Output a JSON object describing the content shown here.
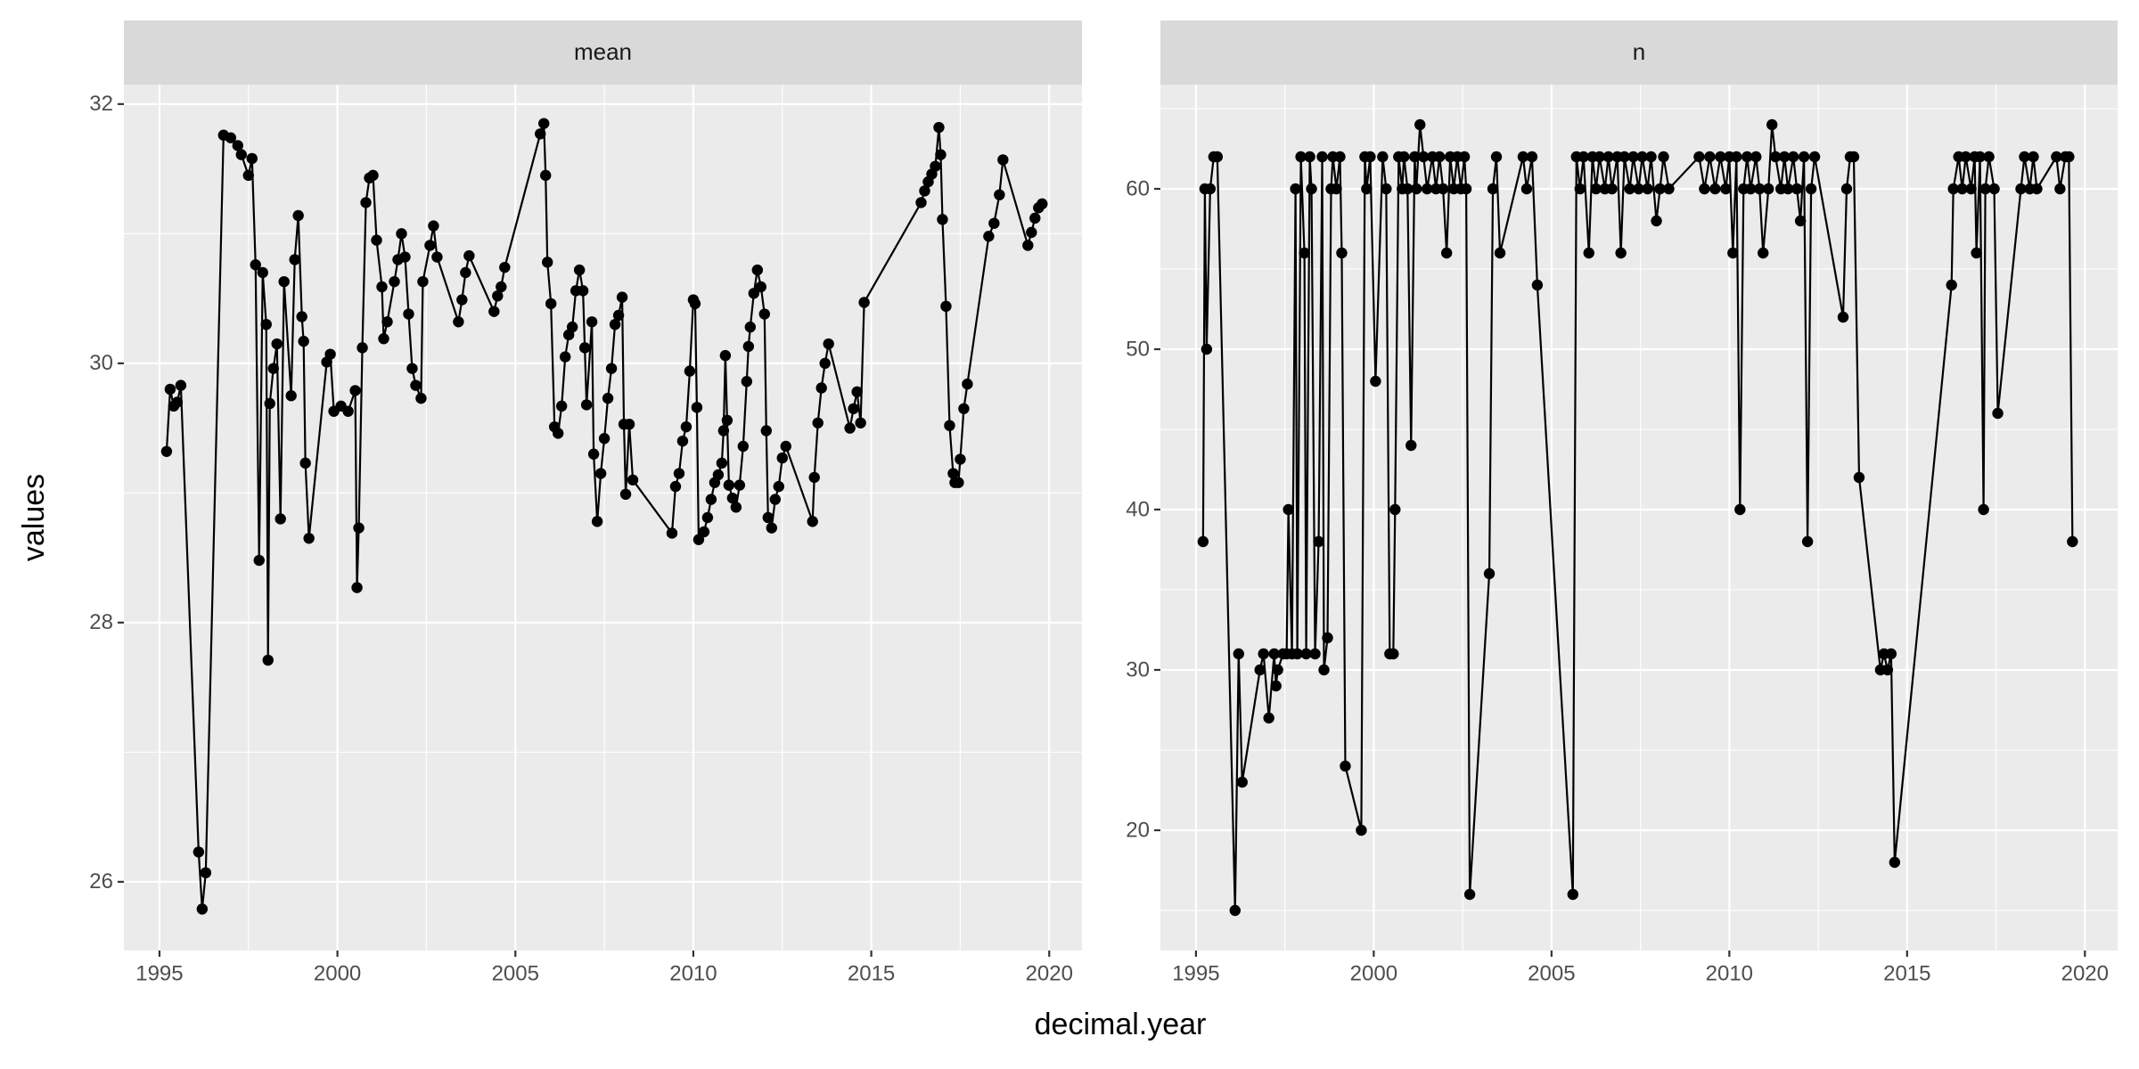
{
  "chart_data": [
    {
      "type": "line",
      "title": "mean",
      "color": "#000000",
      "grid": true,
      "xlim": [
        1994.0,
        2020.92
      ],
      "ylim": [
        25.47,
        32.15
      ],
      "xticks": [
        1995,
        2000,
        2005,
        2010,
        2015,
        2020
      ],
      "yticks": [
        26,
        28,
        30,
        32
      ],
      "x": [
        1995.2,
        1995.3,
        1995.4,
        1995.5,
        1995.6,
        1996.1,
        1996.2,
        1996.3,
        1996.8,
        1997.0,
        1997.2,
        1997.3,
        1997.5,
        1997.6,
        1997.7,
        1997.8,
        1997.9,
        1998.0,
        1998.05,
        1998.1,
        1998.2,
        1998.3,
        1998.4,
        1998.5,
        1998.7,
        1998.8,
        1998.9,
        1999.0,
        1999.05,
        1999.1,
        1999.2,
        1999.7,
        1999.8,
        1999.9,
        2000.1,
        2000.3,
        2000.5,
        2000.55,
        2000.6,
        2000.7,
        2000.8,
        2000.9,
        2001.0,
        2001.1,
        2001.25,
        2001.3,
        2001.4,
        2001.6,
        2001.7,
        2001.8,
        2001.9,
        2002.0,
        2002.1,
        2002.2,
        2002.35,
        2002.4,
        2002.6,
        2002.7,
        2002.8,
        2003.4,
        2003.5,
        2003.6,
        2003.7,
        2004.4,
        2004.5,
        2004.6,
        2004.7,
        2005.7,
        2005.8,
        2005.85,
        2005.9,
        2006.0,
        2006.1,
        2006.2,
        2006.3,
        2006.4,
        2006.5,
        2006.6,
        2006.7,
        2006.8,
        2006.9,
        2006.95,
        2007.0,
        2007.15,
        2007.2,
        2007.3,
        2007.4,
        2007.5,
        2007.6,
        2007.7,
        2007.8,
        2007.9,
        2008.0,
        2008.05,
        2008.1,
        2008.2,
        2008.3,
        2009.4,
        2009.5,
        2009.6,
        2009.7,
        2009.8,
        2009.9,
        2010.0,
        2010.05,
        2010.1,
        2010.15,
        2010.3,
        2010.4,
        2010.5,
        2010.6,
        2010.7,
        2010.8,
        2010.85,
        2010.9,
        2010.95,
        2011.0,
        2011.1,
        2011.2,
        2011.3,
        2011.4,
        2011.5,
        2011.55,
        2011.6,
        2011.7,
        2011.8,
        2011.9,
        2012.0,
        2012.05,
        2012.1,
        2012.2,
        2012.3,
        2012.4,
        2012.5,
        2012.6,
        2013.35,
        2013.4,
        2013.5,
        2013.6,
        2013.7,
        2013.8,
        2014.4,
        2014.5,
        2014.6,
        2014.7,
        2014.8,
        2016.4,
        2016.5,
        2016.6,
        2016.7,
        2016.8,
        2016.9,
        2016.95,
        2017.0,
        2017.1,
        2017.2,
        2017.3,
        2017.35,
        2017.45,
        2017.5,
        2017.6,
        2017.7,
        2018.3,
        2018.45,
        2018.6,
        2018.7,
        2019.4,
        2019.5,
        2019.6,
        2019.7,
        2019.8
      ],
      "values": [
        29.32,
        29.8,
        29.67,
        29.7,
        29.83,
        26.23,
        25.79,
        26.07,
        31.76,
        31.74,
        31.68,
        31.61,
        31.45,
        31.58,
        30.76,
        28.48,
        30.7,
        30.3,
        27.71,
        29.69,
        29.96,
        30.15,
        28.8,
        30.63,
        29.75,
        30.8,
        31.14,
        30.36,
        30.17,
        29.23,
        28.65,
        30.01,
        30.07,
        29.63,
        29.67,
        29.63,
        29.79,
        28.27,
        28.73,
        30.12,
        31.24,
        31.43,
        31.45,
        30.95,
        30.59,
        30.19,
        30.32,
        30.63,
        30.8,
        31.0,
        30.82,
        30.38,
        29.96,
        29.83,
        29.73,
        30.63,
        30.91,
        31.06,
        30.82,
        30.32,
        30.49,
        30.7,
        30.83,
        30.4,
        30.52,
        30.59,
        30.74,
        31.77,
        31.85,
        31.45,
        30.78,
        30.46,
        29.51,
        29.46,
        29.67,
        30.05,
        30.22,
        30.28,
        30.56,
        30.72,
        30.56,
        30.12,
        29.68,
        30.32,
        29.3,
        28.78,
        29.15,
        29.42,
        29.73,
        29.96,
        30.3,
        30.37,
        30.51,
        29.53,
        28.99,
        29.53,
        29.1,
        28.69,
        29.05,
        29.15,
        29.4,
        29.51,
        29.94,
        30.49,
        30.46,
        29.66,
        28.64,
        28.7,
        28.81,
        28.95,
        29.08,
        29.14,
        29.23,
        29.48,
        30.06,
        29.56,
        29.06,
        28.96,
        28.89,
        29.06,
        29.36,
        29.86,
        30.13,
        30.28,
        30.54,
        30.72,
        30.59,
        30.38,
        29.48,
        28.81,
        28.73,
        28.95,
        29.05,
        29.27,
        29.36,
        28.78,
        29.12,
        29.54,
        29.81,
        30.0,
        30.15,
        29.5,
        29.65,
        29.78,
        29.54,
        30.47,
        31.24,
        31.33,
        31.4,
        31.46,
        31.52,
        31.82,
        31.61,
        31.11,
        30.44,
        29.52,
        29.15,
        29.08,
        29.08,
        29.26,
        29.65,
        29.84,
        30.98,
        31.08,
        31.3,
        31.57,
        30.91,
        31.01,
        31.12,
        31.2,
        31.23
      ]
    },
    {
      "type": "line",
      "title": "n",
      "color": "#000000",
      "grid": true,
      "xlim": [
        1994.0,
        2020.92
      ],
      "ylim": [
        12.5,
        66.5
      ],
      "xticks": [
        1995,
        2000,
        2005,
        2010,
        2015,
        2020
      ],
      "yticks": [
        20,
        30,
        40,
        50,
        60
      ],
      "x": [
        1995.2,
        1995.25,
        1995.3,
        1995.4,
        1995.5,
        1995.6,
        1996.1,
        1996.2,
        1996.3,
        1996.8,
        1996.9,
        1997.05,
        1997.2,
        1997.25,
        1997.3,
        1997.45,
        1997.55,
        1997.6,
        1997.7,
        1997.8,
        1997.85,
        1997.95,
        1998.05,
        1998.1,
        1998.2,
        1998.25,
        1998.35,
        1998.45,
        1998.55,
        1998.6,
        1998.7,
        1998.8,
        1998.85,
        1998.95,
        1999.05,
        1999.1,
        1999.2,
        1999.65,
        1999.75,
        1999.8,
        1999.9,
        2000.05,
        2000.25,
        2000.35,
        2000.45,
        2000.55,
        2000.6,
        2000.7,
        2000.8,
        2000.85,
        2000.95,
        2001.05,
        2001.15,
        2001.2,
        2001.3,
        2001.4,
        2001.5,
        2001.65,
        2001.75,
        2001.85,
        2001.95,
        2002.05,
        2002.15,
        2002.25,
        2002.35,
        2002.45,
        2002.55,
        2002.6,
        2002.7,
        2003.25,
        2003.35,
        2003.45,
        2003.55,
        2004.2,
        2004.3,
        2004.45,
        2004.6,
        2005.6,
        2005.7,
        2005.8,
        2005.9,
        2006.05,
        2006.15,
        2006.25,
        2006.35,
        2006.5,
        2006.6,
        2006.7,
        2006.85,
        2006.95,
        2007.05,
        2007.2,
        2007.3,
        2007.45,
        2007.55,
        2007.7,
        2007.8,
        2007.95,
        2008.05,
        2008.15,
        2008.3,
        2009.15,
        2009.3,
        2009.45,
        2009.6,
        2009.75,
        2009.9,
        2010.0,
        2010.1,
        2010.2,
        2010.3,
        2010.4,
        2010.5,
        2010.6,
        2010.75,
        2010.85,
        2010.95,
        2011.1,
        2011.2,
        2011.3,
        2011.45,
        2011.55,
        2011.65,
        2011.8,
        2011.9,
        2012.0,
        2012.1,
        2012.2,
        2012.3,
        2012.4,
        2013.2,
        2013.3,
        2013.4,
        2013.5,
        2013.65,
        2014.25,
        2014.35,
        2014.45,
        2014.55,
        2014.65,
        2016.25,
        2016.3,
        2016.45,
        2016.55,
        2016.65,
        2016.8,
        2016.9,
        2016.95,
        2017.05,
        2017.15,
        2017.2,
        2017.3,
        2017.45,
        2017.55,
        2018.2,
        2018.3,
        2018.45,
        2018.55,
        2018.65,
        2019.2,
        2019.3,
        2019.45,
        2019.55,
        2019.65
      ],
      "values": [
        38,
        60,
        50,
        60,
        62,
        62,
        15,
        31,
        23,
        30,
        31,
        27,
        31,
        29,
        30,
        31,
        31,
        40,
        31,
        60,
        31,
        62,
        56,
        31,
        62,
        60,
        31,
        38,
        62,
        30,
        32,
        60,
        62,
        60,
        62,
        56,
        24,
        20,
        62,
        60,
        62,
        48,
        62,
        60,
        31,
        31,
        40,
        62,
        60,
        62,
        60,
        44,
        62,
        60,
        64,
        62,
        60,
        62,
        60,
        62,
        60,
        56,
        62,
        60,
        62,
        60,
        62,
        60,
        16,
        36,
        60,
        62,
        56,
        62,
        60,
        62,
        54,
        16,
        62,
        60,
        62,
        56,
        62,
        60,
        62,
        60,
        62,
        60,
        62,
        56,
        62,
        60,
        62,
        60,
        62,
        60,
        62,
        58,
        60,
        62,
        60,
        62,
        60,
        62,
        60,
        62,
        60,
        62,
        56,
        62,
        40,
        60,
        62,
        60,
        62,
        60,
        56,
        60,
        64,
        62,
        60,
        62,
        60,
        62,
        60,
        58,
        62,
        38,
        60,
        62,
        52,
        60,
        62,
        62,
        42,
        30,
        31,
        30,
        31,
        18,
        54,
        60,
        62,
        60,
        62,
        60,
        62,
        56,
        62,
        40,
        60,
        62,
        60,
        46,
        60,
        62,
        60,
        62,
        60,
        62,
        60,
        62,
        62,
        38
      ]
    }
  ],
  "shared": {
    "x_label": "decimal.year",
    "y_label": "values"
  }
}
